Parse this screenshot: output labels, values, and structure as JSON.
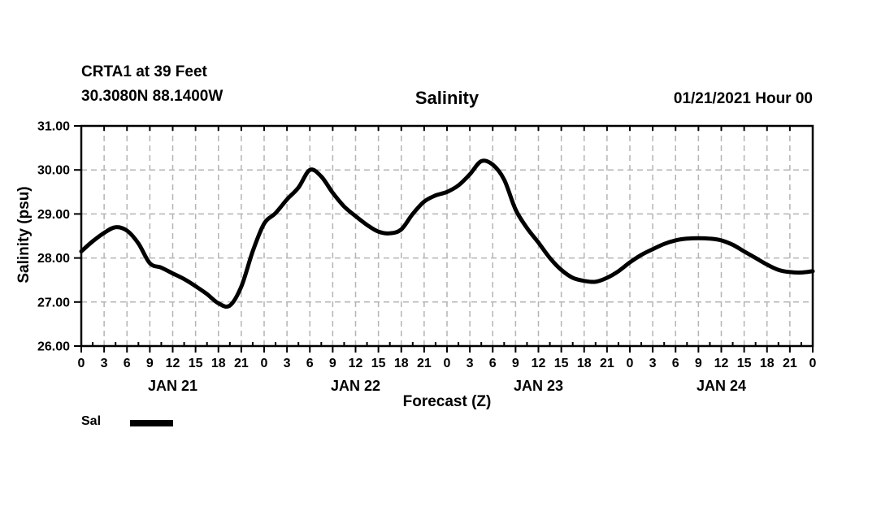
{
  "header": {
    "station_line1": "CRTA1 at 39 Feet",
    "station_line2": "30.3080N 88.1400W",
    "title": "Salinity",
    "datetime": "01/21/2021 Hour 00"
  },
  "legend": {
    "label": "Sal",
    "color": "#000000"
  },
  "colors": {
    "line": "#000000",
    "grid": "#b4b4b4",
    "text": "#000000",
    "background": "#ffffff"
  },
  "chart_data": {
    "type": "line",
    "title": "Salinity",
    "xlabel": "Forecast (Z)",
    "ylabel": "Salinity (psu)",
    "ylim": [
      26.0,
      31.0
    ],
    "x_hours_range": [
      0,
      96
    ],
    "grid": true,
    "legend_position": "bottom-left",
    "y_ticks": [
      "31.00",
      "30.00",
      "29.00",
      "28.00",
      "27.00",
      "26.00"
    ],
    "x_hour_labels": [
      "0",
      "3",
      "6",
      "9",
      "12",
      "15",
      "18",
      "21",
      "0",
      "3",
      "6",
      "9",
      "12",
      "15",
      "18",
      "21",
      "0",
      "3",
      "6",
      "9",
      "12",
      "15",
      "18",
      "21",
      "0",
      "3",
      "6",
      "9",
      "12",
      "15",
      "18",
      "21",
      "0"
    ],
    "day_labels": [
      "JAN 21",
      "JAN 22",
      "JAN 23",
      "JAN 24"
    ],
    "series": [
      {
        "name": "Sal",
        "color": "#000000",
        "x_hours": [
          0,
          1.5,
          3,
          4.5,
          6,
          7.5,
          9,
          10.5,
          12,
          13.5,
          15,
          16.5,
          18,
          19.5,
          21,
          22.5,
          24,
          25.5,
          27,
          28.5,
          30,
          31.5,
          33,
          34.5,
          36,
          37.5,
          39,
          40.5,
          42,
          43.5,
          45,
          46.5,
          48,
          49.5,
          51,
          52.5,
          54,
          55.5,
          57,
          58.5,
          60,
          61.5,
          63,
          64.5,
          66,
          67.5,
          69,
          70.5,
          72,
          73.5,
          75,
          76.5,
          78,
          79.5,
          81,
          82.5,
          84,
          85.5,
          87,
          88.5,
          90,
          91.5,
          93,
          94.5,
          96
        ],
        "values": [
          28.15,
          28.38,
          28.57,
          28.7,
          28.62,
          28.33,
          27.88,
          27.78,
          27.65,
          27.52,
          27.36,
          27.18,
          26.97,
          26.92,
          27.35,
          28.15,
          28.78,
          29.02,
          29.33,
          29.6,
          30.0,
          29.85,
          29.48,
          29.17,
          28.95,
          28.75,
          28.6,
          28.56,
          28.65,
          29.0,
          29.28,
          29.42,
          29.5,
          29.65,
          29.9,
          30.2,
          30.12,
          29.78,
          29.1,
          28.68,
          28.35,
          28.0,
          27.73,
          27.55,
          27.48,
          27.46,
          27.55,
          27.7,
          27.9,
          28.07,
          28.2,
          28.32,
          28.4,
          28.44,
          28.45,
          28.44,
          28.4,
          28.3,
          28.15,
          28.0,
          27.85,
          27.73,
          27.68,
          27.67,
          27.7
        ]
      }
    ]
  }
}
